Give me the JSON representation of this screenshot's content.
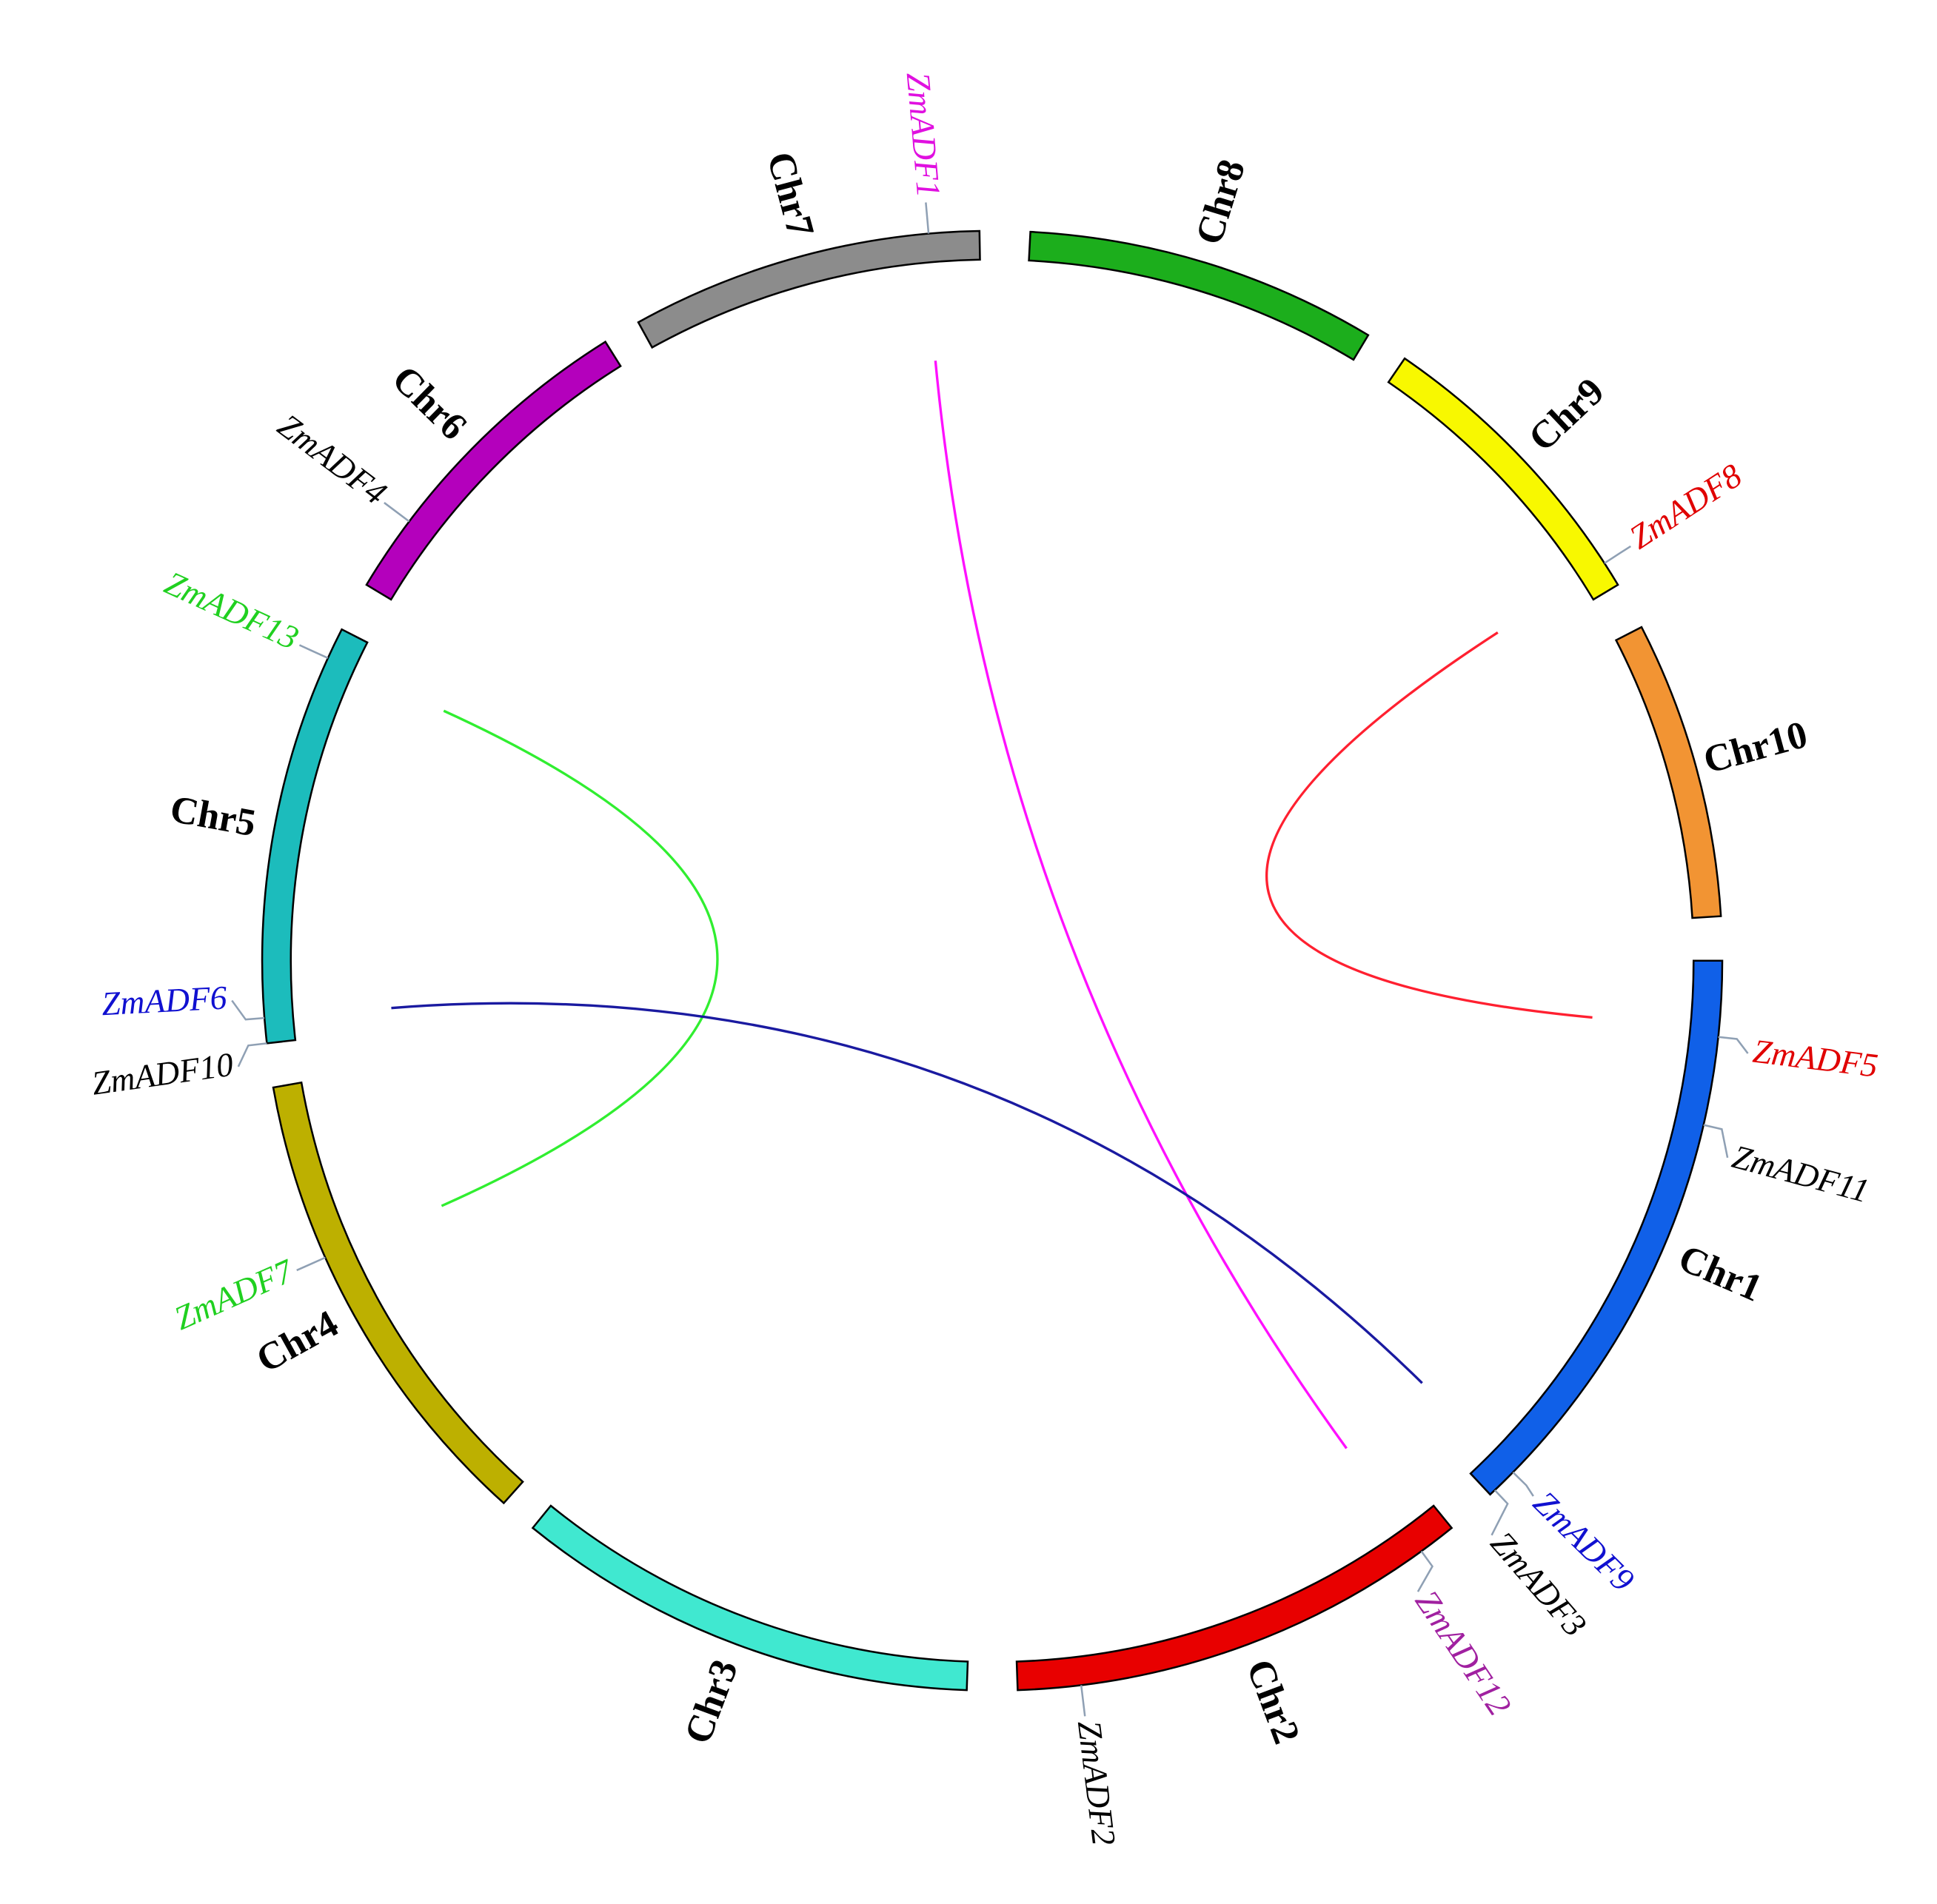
{
  "chromosomes": [
    {
      "label": "Chr1",
      "color": "#1060e8"
    },
    {
      "label": "Chr2",
      "color": "#e80000"
    },
    {
      "label": "Chr3",
      "color": "#40e8d0"
    },
    {
      "label": "Chr4",
      "color": "#bdb000"
    },
    {
      "label": "Chr5",
      "color": "#1cbcbc"
    },
    {
      "label": "Chr6",
      "color": "#b400bc"
    },
    {
      "label": "Chr7",
      "color": "#8c8c8c"
    },
    {
      "label": "Chr8",
      "color": "#1cae1c"
    },
    {
      "label": "Chr9",
      "color": "#f8f800"
    },
    {
      "label": "Chr10",
      "color": "#f29433"
    }
  ],
  "genes": [
    {
      "label": "ZmADF1",
      "color": "#e010e0"
    },
    {
      "label": "ZmADF2",
      "color": "#000000"
    },
    {
      "label": "ZmADF3",
      "color": "#000000"
    },
    {
      "label": "ZmADF4",
      "color": "#000000"
    },
    {
      "label": "ZmADF5",
      "color": "#e00000"
    },
    {
      "label": "ZmADF6",
      "color": "#1010d0"
    },
    {
      "label": "ZmADF7",
      "color": "#20d020"
    },
    {
      "label": "ZmADF8",
      "color": "#e00000"
    },
    {
      "label": "ZmADF9",
      "color": "#1010d0"
    },
    {
      "label": "ZmADF10",
      "color": "#000000"
    },
    {
      "label": "ZmADF11",
      "color": "#000000"
    },
    {
      "label": "ZmADF12",
      "color": "#a020a0"
    },
    {
      "label": "ZmADF13",
      "color": "#20d020"
    }
  ],
  "links": [
    {
      "color": "#ff10ff"
    },
    {
      "color": "#ff2030"
    },
    {
      "color": "#30ee30"
    },
    {
      "color": "#1a1aa0"
    }
  ]
}
